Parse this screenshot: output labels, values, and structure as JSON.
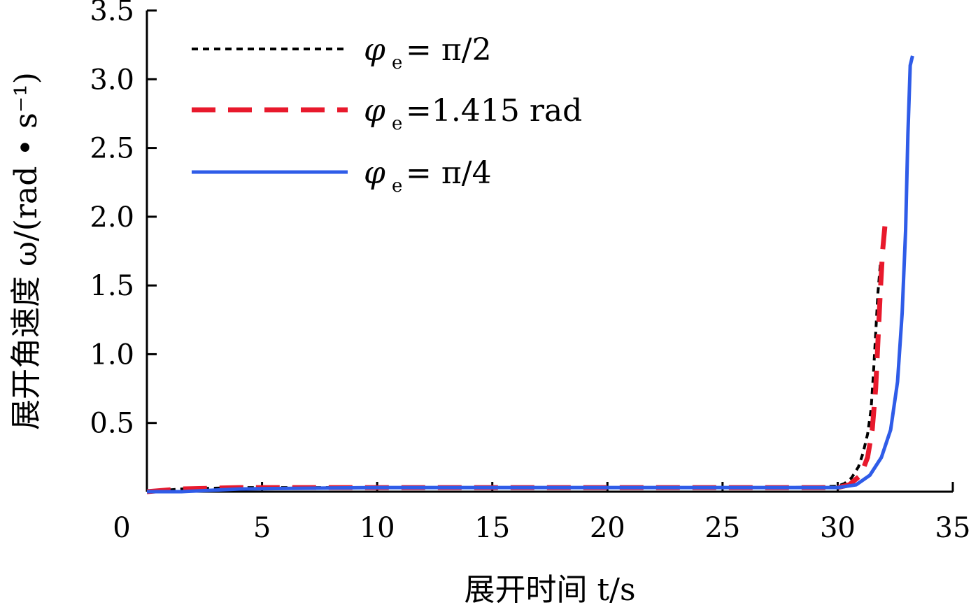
{
  "chart_data": {
    "type": "line",
    "xlabel": "展开时间 t/s",
    "ylabel": "展开角速度 ω/(rad • s⁻¹)",
    "xlim": [
      0,
      35
    ],
    "ylim": [
      0,
      3.5
    ],
    "x_ticks": [
      "0",
      "5",
      "10",
      "15",
      "20",
      "25",
      "30",
      "35"
    ],
    "y_ticks": [
      "0.5",
      "1.0",
      "1.5",
      "2.0",
      "2.5",
      "3.0",
      "3.5"
    ],
    "grid": false,
    "legend_position": "top-left",
    "series": [
      {
        "name": "φe = π/2",
        "symbol": "φ",
        "subscript": "e",
        "value": "= π/2",
        "color": "#000000",
        "style": "dotted",
        "x": [
          0,
          1.5,
          4,
          10,
          20,
          28,
          30,
          30.3,
          30.6,
          30.9,
          31.1,
          31.3,
          31.45,
          31.55,
          31.65,
          31.75,
          31.85
        ],
        "y": [
          0,
          0.02,
          0.03,
          0.03,
          0.03,
          0.03,
          0.04,
          0.06,
          0.1,
          0.18,
          0.28,
          0.42,
          0.6,
          0.85,
          1.15,
          1.45,
          1.65
        ]
      },
      {
        "name": "φe = 1.415 rad",
        "symbol": "φ",
        "subscript": "e",
        "value": "=1.415 rad",
        "color": "#e8192c",
        "style": "dashed",
        "x": [
          0,
          1.5,
          4,
          10,
          20,
          28,
          30,
          30.5,
          31.0,
          31.3,
          31.5,
          31.65,
          31.75,
          31.85,
          31.95,
          32.05
        ],
        "y": [
          0,
          0.02,
          0.03,
          0.03,
          0.03,
          0.03,
          0.03,
          0.05,
          0.12,
          0.25,
          0.45,
          0.75,
          1.1,
          1.45,
          1.75,
          1.93
        ]
      },
      {
        "name": "φe = π/4",
        "symbol": "φ",
        "subscript": "e",
        "value": "= π/4",
        "color": "#2f5ce8",
        "style": "solid",
        "x": [
          0,
          1.5,
          4,
          10,
          20,
          28,
          30,
          30.8,
          31.4,
          31.9,
          32.3,
          32.6,
          32.8,
          32.95,
          33.05,
          33.15,
          33.25
        ],
        "y": [
          0,
          0.0,
          0.02,
          0.03,
          0.03,
          0.03,
          0.03,
          0.05,
          0.12,
          0.25,
          0.45,
          0.8,
          1.3,
          1.9,
          2.6,
          3.1,
          3.17
        ]
      }
    ]
  }
}
